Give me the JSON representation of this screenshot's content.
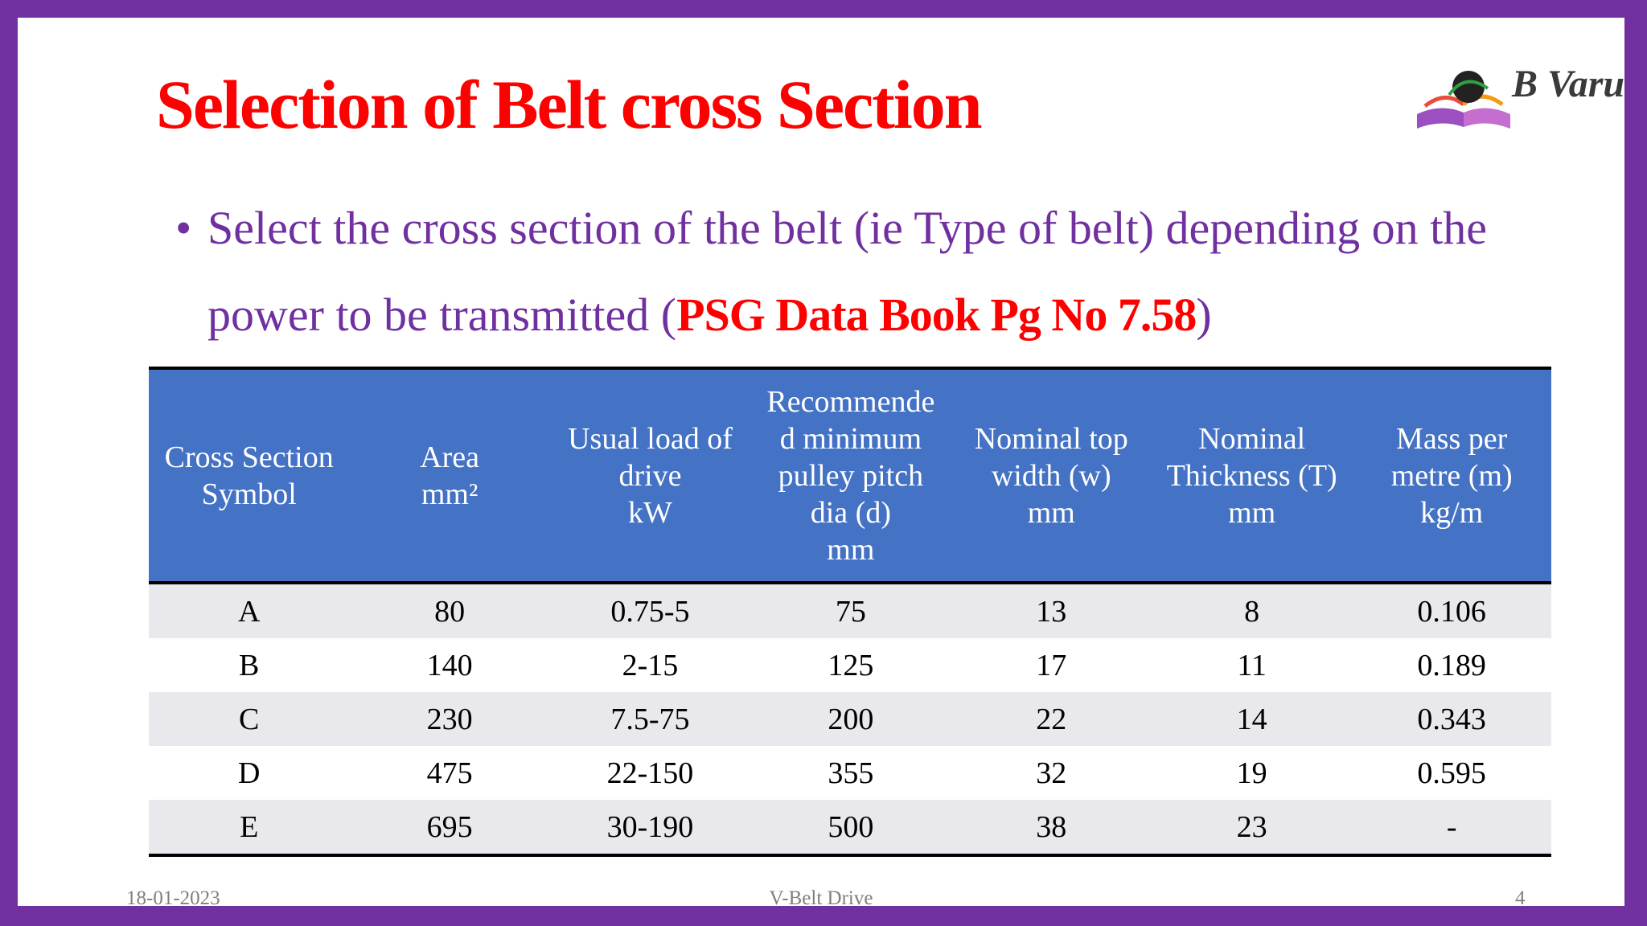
{
  "slide": {
    "title": "Selection of Belt cross Section",
    "logo_text": "B Varu",
    "bullet": {
      "marker": "•",
      "text": "Select the cross section of the belt (ie Type of belt) depending on the power to be transmitted (",
      "reference": "PSG Data Book Pg No 7.58",
      "close": ")"
    }
  },
  "table": {
    "headers": [
      [
        "Cross Section",
        "Symbol"
      ],
      [
        "Area",
        "mm²"
      ],
      [
        "Usual load of",
        "drive",
        "kW"
      ],
      [
        "Recommende",
        "d minimum",
        "pulley pitch",
        "dia (d)",
        "mm"
      ],
      [
        "Nominal top",
        "width (w)",
        "mm"
      ],
      [
        "Nominal",
        "Thickness (T)",
        "mm"
      ],
      [
        "Mass per",
        "metre (m)",
        "kg/m"
      ]
    ],
    "rows": [
      [
        "A",
        "80",
        "0.75-5",
        "75",
        "13",
        "8",
        "0.106"
      ],
      [
        "B",
        "140",
        "2-15",
        "125",
        "17",
        "11",
        "0.189"
      ],
      [
        "C",
        "230",
        "7.5-75",
        "200",
        "22",
        "14",
        "0.343"
      ],
      [
        "D",
        "475",
        "22-150",
        "355",
        "32",
        "19",
        "0.595"
      ],
      [
        "E",
        "695",
        "30-190",
        "500",
        "38",
        "23",
        "-"
      ]
    ]
  },
  "footer": {
    "date": "18-01-2023",
    "center": "V-Belt Drive",
    "page": "4"
  }
}
